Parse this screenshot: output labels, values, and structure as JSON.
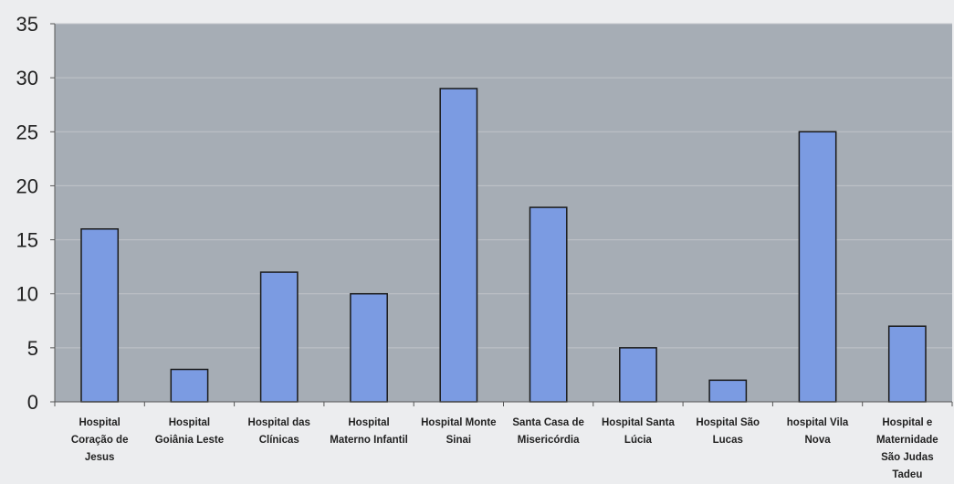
{
  "chart_data": {
    "type": "bar",
    "categories": [
      [
        "Hospital",
        "Coração de",
        "Jesus"
      ],
      [
        "Hospital",
        "Goiânia Leste"
      ],
      [
        "Hospital das",
        "Clínicas"
      ],
      [
        "Hospital",
        "Materno Infantil"
      ],
      [
        "Hospital Monte",
        "Sinai"
      ],
      [
        "Santa Casa de",
        "Misericórdia"
      ],
      [
        "Hospital Santa",
        "Lúcia"
      ],
      [
        "Hospital São",
        "Lucas"
      ],
      [
        "hospital Vila",
        "Nova"
      ],
      [
        "Hospital e",
        "Maternidade",
        "São Judas",
        "Tadeu"
      ]
    ],
    "values": [
      16,
      3,
      12,
      10,
      29,
      18,
      5,
      2,
      25,
      7
    ],
    "ylim": [
      0,
      35
    ],
    "yticks": [
      "0",
      "5",
      "10",
      "15",
      "20",
      "25",
      "30",
      "35"
    ],
    "title": "",
    "xlabel": "",
    "ylabel": "",
    "grid": true,
    "colors": {
      "bar_fill": "#7b9be2",
      "bar_stroke": "#1a1a1a",
      "plot_bg": "#a6adb5",
      "gridline": "#c0c4c9",
      "page_bg": "#ecedef"
    }
  }
}
